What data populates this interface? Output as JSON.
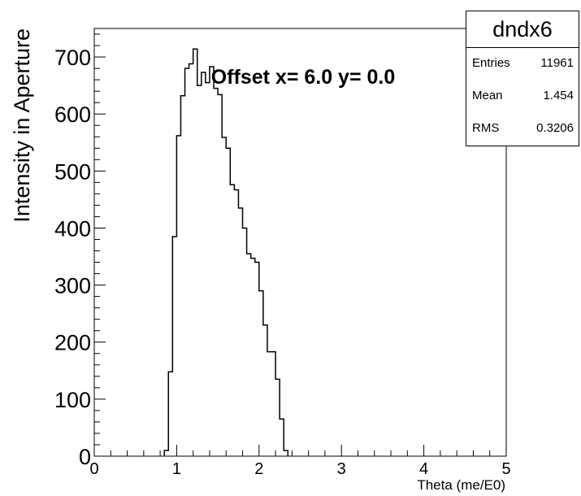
{
  "chart_data": {
    "type": "histogram",
    "title": "Offset x= 6.0 y= 0.0",
    "xlabel": "Theta (me/E0)",
    "ylabel": "Intensity in Aperture",
    "xlim": [
      0,
      5
    ],
    "ylim": [
      0,
      750
    ],
    "xticks": [
      "0",
      "1",
      "2",
      "3",
      "4",
      "5"
    ],
    "yticks": [
      "0",
      "100",
      "200",
      "300",
      "400",
      "500",
      "600",
      "700"
    ],
    "grid": false,
    "bin_width": 0.05,
    "bins_start": 0.85,
    "values": [
      10,
      148,
      385,
      562,
      632,
      680,
      688,
      714,
      650,
      673,
      655,
      683,
      645,
      634,
      559,
      540,
      476,
      467,
      435,
      400,
      355,
      347,
      340,
      290,
      230,
      183,
      183,
      135,
      65,
      10
    ],
    "stats_box": {
      "name": "dndx6",
      "entries_label": "Entries",
      "entries": "11961",
      "mean_label": "Mean",
      "mean": "1.454",
      "rms_label": "RMS",
      "rms": "0.3206"
    }
  }
}
